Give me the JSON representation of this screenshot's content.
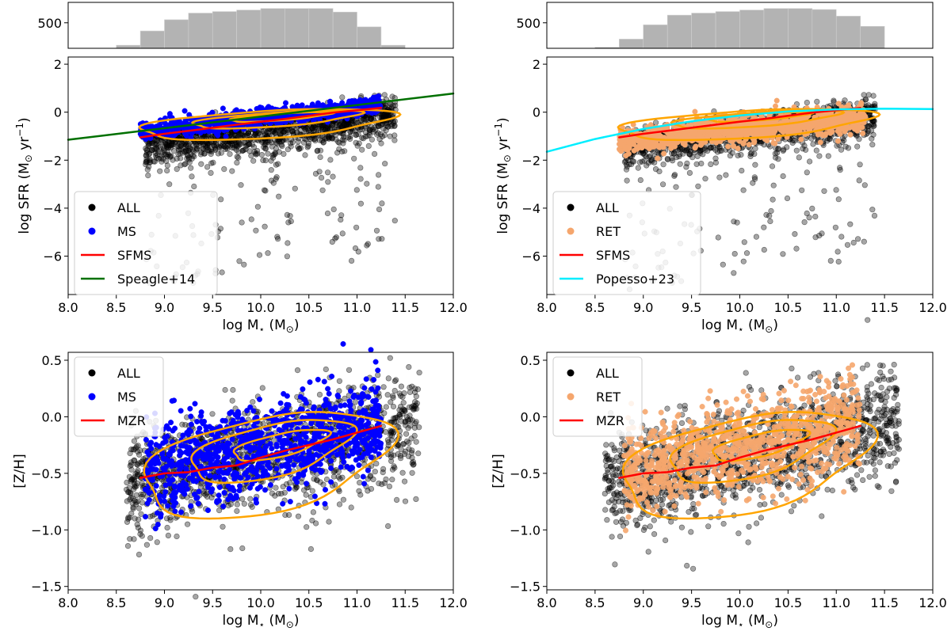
{
  "chart_data": [
    {
      "panel": "top-left-histogram",
      "type": "histogram",
      "xlim": [
        8.0,
        12.0
      ],
      "yticks": [
        500
      ],
      "bins": [
        8.5,
        8.75,
        9.0,
        9.25,
        9.5,
        9.75,
        10.0,
        10.25,
        10.5,
        10.75,
        11.0,
        11.25,
        11.5
      ],
      "counts": [
        60,
        340,
        560,
        690,
        720,
        750,
        780,
        780,
        780,
        710,
        420,
        60
      ],
      "color": "#b3b3b3"
    },
    {
      "panel": "top-left",
      "type": "scatter",
      "xlabel": "log M",
      "xlabel_sub": "⋆",
      "xlabel_unit_open": "(M",
      "xlabel_unit_sub": "⊙",
      "xlabel_unit_close": ")",
      "ylabel": "log SFR (M",
      "ylabel_sub": "⊙",
      "ylabel_unit": " yr",
      "ylabel_sup": "−1",
      "ylabel_close": ")",
      "xlim": [
        8.0,
        12.0
      ],
      "ylim": [
        -7.6,
        2.3
      ],
      "xticks": [
        "8.0",
        "8.5",
        "9.0",
        "9.5",
        "10.0",
        "10.5",
        "11.0",
        "11.5",
        "12.0"
      ],
      "yticks": [
        "2",
        "0",
        "−2",
        "−4",
        "−6"
      ],
      "ytick_values": [
        2,
        0,
        -2,
        -4,
        -6
      ],
      "series": [
        {
          "name": "ALL",
          "kind": "points",
          "color": "#000000"
        },
        {
          "name": "MS",
          "kind": "points",
          "color": "#0000ff"
        },
        {
          "name": "SFMS",
          "kind": "line",
          "color": "#ff0000",
          "x": [
            8.75,
            9.0,
            9.25,
            9.5,
            9.75,
            10.0,
            10.25,
            10.5,
            10.75,
            11.0,
            11.25
          ],
          "y": [
            -1.05,
            -0.9,
            -0.78,
            -0.65,
            -0.52,
            -0.4,
            -0.28,
            -0.15,
            -0.02,
            0.08,
            0.18
          ]
        },
        {
          "name": "Speagle+14",
          "kind": "line",
          "color": "#007000",
          "x": [
            8.0,
            12.0
          ],
          "y": [
            -1.15,
            0.78
          ]
        }
      ]
    },
    {
      "panel": "top-right-histogram",
      "type": "histogram",
      "xlim": [
        8.0,
        12.0
      ],
      "yticks": [
        500
      ],
      "bins": [
        8.5,
        8.75,
        9.0,
        9.25,
        9.5,
        9.75,
        10.0,
        10.25,
        10.5,
        10.75,
        11.0,
        11.25,
        11.5
      ],
      "counts": [
        20,
        180,
        460,
        650,
        690,
        720,
        750,
        780,
        780,
        760,
        630,
        430
      ],
      "color": "#b3b3b3"
    },
    {
      "panel": "top-right",
      "type": "scatter",
      "xlabel": "log M",
      "xlabel_sub": "⋆",
      "xlabel_unit_open": "(M",
      "xlabel_unit_sub": "⊙",
      "xlabel_unit_close": ")",
      "ylabel": "log SFR (M",
      "ylabel_sub": "⊙",
      "ylabel_unit": " yr",
      "ylabel_sup": "−1",
      "ylabel_close": ")",
      "xlim": [
        8.0,
        12.0
      ],
      "ylim": [
        -7.6,
        2.3
      ],
      "xticks": [
        "8.0",
        "8.5",
        "9.0",
        "9.5",
        "10.0",
        "10.5",
        "11.0",
        "11.5",
        "12.0"
      ],
      "yticks": [
        "2",
        "0",
        "−2",
        "−4",
        "−6"
      ],
      "ytick_values": [
        2,
        0,
        -2,
        -4,
        -6
      ],
      "series": [
        {
          "name": "ALL",
          "kind": "points",
          "color": "#000000"
        },
        {
          "name": "RET",
          "kind": "points",
          "color": "#f5a66d"
        },
        {
          "name": "SFMS",
          "kind": "line",
          "color": "#ff0000",
          "x": [
            8.75,
            9.0,
            9.25,
            9.5,
            9.75,
            10.0,
            10.25,
            10.5,
            10.75,
            11.0,
            11.25
          ],
          "y": [
            -1.05,
            -0.9,
            -0.78,
            -0.65,
            -0.52,
            -0.4,
            -0.28,
            -0.15,
            -0.02,
            0.08,
            0.18
          ]
        },
        {
          "name": "Popesso+23",
          "kind": "line",
          "color": "#00eeff",
          "x": [
            8.0,
            8.5,
            9.0,
            9.5,
            10.0,
            10.5,
            11.0,
            11.5,
            12.0
          ],
          "y": [
            -1.65,
            -1.12,
            -0.7,
            -0.38,
            -0.14,
            0.03,
            0.12,
            0.15,
            0.13
          ]
        }
      ]
    },
    {
      "panel": "bottom-left",
      "type": "scatter",
      "xlabel": "log M",
      "xlabel_sub": "⋆",
      "xlabel_unit_open": "(M",
      "xlabel_unit_sub": "⊙",
      "xlabel_unit_close": ")",
      "ylabel": "[Z/H]",
      "xlim": [
        8.0,
        12.0
      ],
      "ylim": [
        -1.53,
        0.57
      ],
      "xticks": [
        "8.0",
        "8.5",
        "9.0",
        "9.5",
        "10.0",
        "10.5",
        "11.0",
        "11.5",
        "12.0"
      ],
      "yticks": [
        "0.5",
        "0.0",
        "−0.5",
        "−1.0",
        "−1.5"
      ],
      "ytick_values": [
        0.5,
        0.0,
        -0.5,
        -1.0,
        -1.5
      ],
      "series": [
        {
          "name": "ALL",
          "kind": "points",
          "color": "#000000"
        },
        {
          "name": "MS",
          "kind": "points",
          "color": "#0000ff"
        },
        {
          "name": "MZR",
          "kind": "line",
          "color": "#ff0000",
          "x": [
            8.75,
            9.0,
            9.25,
            9.5,
            9.75,
            10.0,
            10.25,
            10.5,
            10.75,
            11.0,
            11.25
          ],
          "y": [
            -0.54,
            -0.5,
            -0.49,
            -0.45,
            -0.43,
            -0.36,
            -0.3,
            -0.25,
            -0.2,
            -0.14,
            -0.08
          ]
        }
      ]
    },
    {
      "panel": "bottom-right",
      "type": "scatter",
      "xlabel": "log M",
      "xlabel_sub": "⋆",
      "xlabel_unit_open": "(M",
      "xlabel_unit_sub": "⊙",
      "xlabel_unit_close": ")",
      "ylabel": "[Z/H]",
      "xlim": [
        8.0,
        12.0
      ],
      "ylim": [
        -1.53,
        0.57
      ],
      "xticks": [
        "8.0",
        "8.5",
        "9.0",
        "9.5",
        "10.0",
        "10.5",
        "11.0",
        "11.5",
        "12.0"
      ],
      "yticks": [
        "0.5",
        "0.0",
        "−0.5",
        "−1.0",
        "−1.5"
      ],
      "ytick_values": [
        0.5,
        0.0,
        -0.5,
        -1.0,
        -1.5
      ],
      "series": [
        {
          "name": "ALL",
          "kind": "points",
          "color": "#000000"
        },
        {
          "name": "RET",
          "kind": "points",
          "color": "#f5a66d"
        },
        {
          "name": "MZR",
          "kind": "line",
          "color": "#ff0000",
          "x": [
            8.75,
            9.0,
            9.25,
            9.5,
            9.75,
            10.0,
            10.25,
            10.5,
            10.75,
            11.0,
            11.25
          ],
          "y": [
            -0.54,
            -0.5,
            -0.49,
            -0.45,
            -0.43,
            -0.36,
            -0.3,
            -0.25,
            -0.2,
            -0.14,
            -0.08
          ]
        }
      ]
    }
  ],
  "contour_color": "#ffa500",
  "legend_location": "lower-left (top row), upper-left (bottom row)"
}
